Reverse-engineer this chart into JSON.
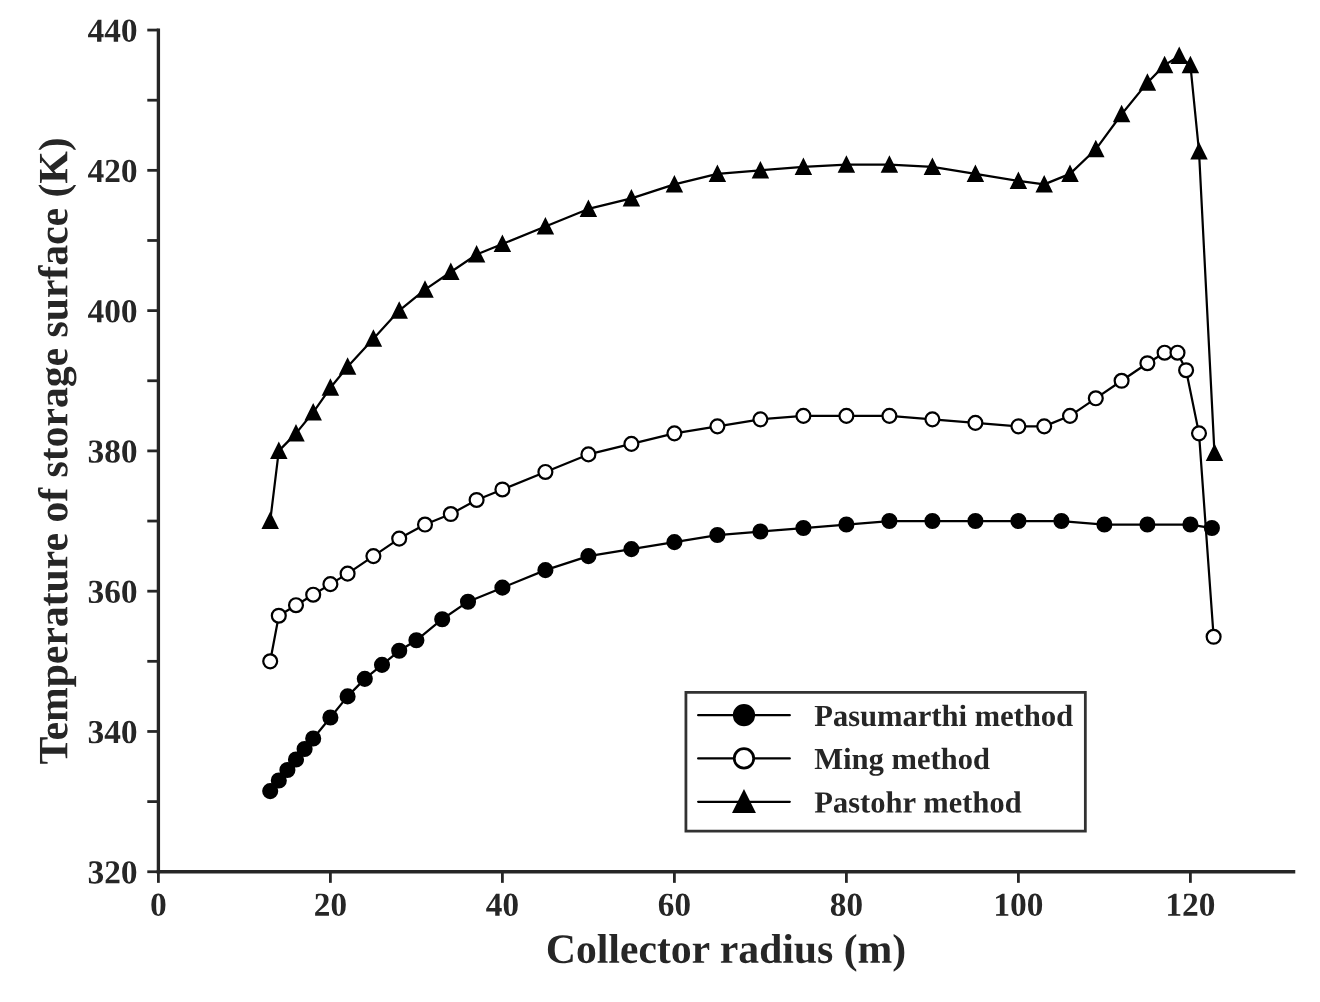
{
  "chart_data": {
    "type": "line",
    "xlabel": "Collector radius (m)",
    "ylabel": "Temperature of storage surface (K)",
    "xlim": [
      0,
      132
    ],
    "xticks": [
      0,
      20,
      40,
      60,
      80,
      100,
      120
    ],
    "ylim": [
      320,
      440
    ],
    "yticks": [
      320,
      {
        "value": 330,
        "label": null
      },
      340,
      {
        "value": 350,
        "label": null
      },
      360,
      {
        "value": 370,
        "label": null
      },
      380,
      {
        "value": 390,
        "label": null
      },
      400,
      {
        "value": 410,
        "label": null
      },
      420,
      {
        "value": 430,
        "label": null
      },
      440
    ],
    "grid": false,
    "legend": "bottom right",
    "line_style": "solid",
    "series": [
      {
        "name": "Pasumarthi method",
        "color": "#000000",
        "marker": "circle",
        "x": [
          13,
          14,
          15,
          16,
          17,
          18,
          20,
          22,
          24,
          26,
          28,
          30,
          33,
          36,
          40,
          45,
          50,
          55,
          60,
          65,
          70,
          75,
          80,
          85,
          90,
          95,
          100,
          105,
          110,
          115,
          120,
          122.5
        ],
        "values": [
          331.5,
          333,
          334.5,
          336,
          337.5,
          339,
          342,
          345,
          347.5,
          349.5,
          351.5,
          353,
          356,
          358.5,
          360.5,
          363,
          365,
          366,
          367,
          368,
          368.5,
          369,
          369.5,
          370,
          370,
          370,
          370,
          370,
          369.5,
          369.5,
          369.5,
          369
        ]
      },
      {
        "name": "Ming method",
        "color": "#ffffff",
        "marker": "circle",
        "x": [
          13,
          14,
          16,
          18,
          20,
          22,
          25,
          28,
          31,
          34,
          37,
          40,
          45,
          50,
          55,
          60,
          65,
          70,
          75,
          80,
          85,
          90,
          95,
          100,
          103,
          106,
          109,
          112,
          115,
          117,
          118.5,
          119.5,
          121,
          122.7
        ],
        "values": [
          350,
          356.5,
          358,
          359.5,
          361,
          362.5,
          365,
          367.5,
          369.5,
          371,
          373,
          374.5,
          377,
          379.5,
          381,
          382.5,
          383.5,
          384.5,
          385,
          385,
          385,
          384.5,
          384,
          383.5,
          383.5,
          385,
          387.5,
          390,
          392.5,
          394,
          394,
          391.5,
          382.5,
          353.5
        ]
      },
      {
        "name": "Pastohr method",
        "color": "#000000",
        "marker": "triangle",
        "x": [
          13,
          14,
          16,
          18,
          20,
          22,
          25,
          28,
          31,
          34,
          37,
          40,
          45,
          50,
          55,
          60,
          65,
          70,
          75,
          80,
          85,
          90,
          95,
          100,
          103,
          106,
          109,
          112,
          115,
          117,
          118.7,
          120,
          121,
          122.8
        ],
        "values": [
          370,
          380,
          382.5,
          385.5,
          389,
          392,
          396,
          400,
          403,
          405.5,
          408,
          409.5,
          412,
          414.5,
          416,
          418,
          419.5,
          420,
          420.5,
          420.8,
          420.8,
          420.5,
          419.5,
          418.5,
          418,
          419.5,
          423,
          428,
          432.5,
          435,
          436.3,
          435,
          422.7,
          379.7
        ]
      }
    ]
  }
}
